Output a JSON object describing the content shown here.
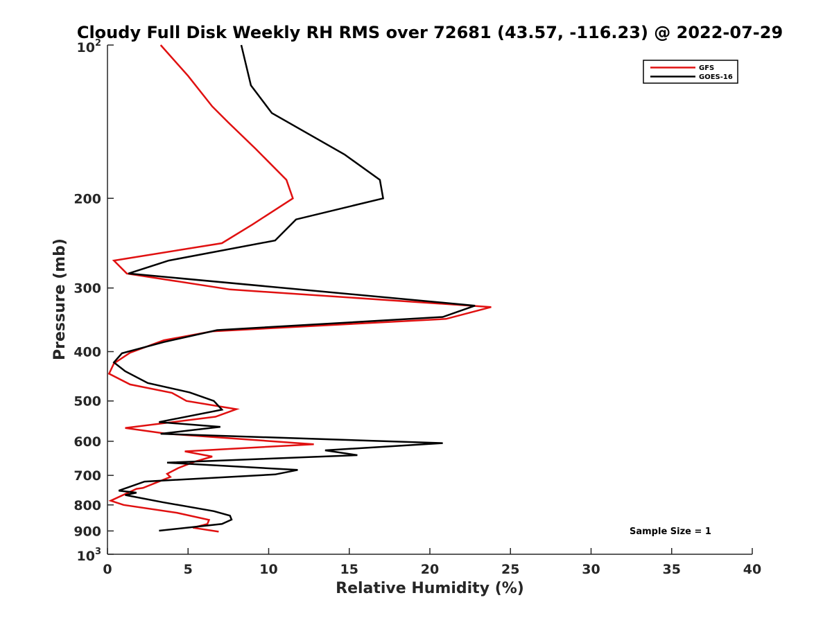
{
  "chart_data": {
    "type": "line",
    "title": "Cloudy Full Disk Weekly RH RMS over 72681 (43.57, -116.23) @ 2022-07-29",
    "xlabel": "Relative Humidity (%)",
    "ylabel": "Pressure (mb)",
    "xlim": [
      0,
      40
    ],
    "ylim": [
      100,
      1000
    ],
    "yscale": "log",
    "y_reversed": true,
    "grid": false,
    "legend_position": "top-right",
    "x_ticks": [
      0,
      5,
      10,
      15,
      20,
      25,
      30,
      35,
      40
    ],
    "x_tick_labels": [
      "0",
      "5",
      "10",
      "15",
      "20",
      "25",
      "30",
      "35",
      "40"
    ],
    "y_ticks": [
      200,
      300,
      400,
      500,
      600,
      700,
      800,
      900
    ],
    "y_tick_labels": [
      "200",
      "300",
      "400",
      "500",
      "600",
      "700",
      "800",
      "900"
    ],
    "y_end_labels": {
      "top_base": "10",
      "top_exp": "2",
      "bottom_base": "10",
      "bottom_exp": "3"
    },
    "annotation": "Sample Size = 1",
    "series": [
      {
        "name": "GFS",
        "color": "#e01010",
        "points": [
          [
            3.3,
            100
          ],
          [
            5,
            115
          ],
          [
            6.5,
            132
          ],
          [
            7.5,
            142
          ],
          [
            9.2,
            160
          ],
          [
            11.1,
            184
          ],
          [
            11.5,
            200
          ],
          [
            9,
            225
          ],
          [
            7.1,
            245
          ],
          [
            0.4,
            265
          ],
          [
            1.2,
            281
          ],
          [
            7.6,
            302
          ],
          [
            23.8,
            327
          ],
          [
            21,
            345
          ],
          [
            6.5,
            365
          ],
          [
            3.5,
            380
          ],
          [
            1.4,
            402
          ],
          [
            0.4,
            422
          ],
          [
            0.1,
            442
          ],
          [
            1.4,
            464
          ],
          [
            4,
            482
          ],
          [
            4.9,
            500
          ],
          [
            8,
            519
          ],
          [
            6.7,
            537
          ],
          [
            1.1,
            565
          ],
          [
            3.7,
            580
          ],
          [
            12.8,
            608
          ],
          [
            4.8,
            628
          ],
          [
            6.5,
            643
          ],
          [
            5.4,
            658
          ],
          [
            4.4,
            677
          ],
          [
            3.7,
            695
          ],
          [
            3.9,
            705
          ],
          [
            2.2,
            741
          ],
          [
            1.8,
            744
          ],
          [
            0.2,
            785
          ],
          [
            1,
            800
          ],
          [
            4.3,
            829
          ],
          [
            6.3,
            856
          ],
          [
            6.2,
            872
          ],
          [
            5.3,
            887
          ],
          [
            6.9,
            903
          ]
        ]
      },
      {
        "name": "GOES-16",
        "color": "#000000",
        "points": [
          [
            8.3,
            100
          ],
          [
            8.9,
            120
          ],
          [
            10.2,
            136
          ],
          [
            14.7,
            164
          ],
          [
            16.9,
            184
          ],
          [
            17.1,
            200
          ],
          [
            11.7,
            220
          ],
          [
            10.4,
            242
          ],
          [
            3.8,
            265
          ],
          [
            1.3,
            281
          ],
          [
            22.8,
            325
          ],
          [
            20.8,
            342
          ],
          [
            6.8,
            363
          ],
          [
            3.5,
            383
          ],
          [
            0.9,
            403
          ],
          [
            0.4,
            420
          ],
          [
            1.1,
            437
          ],
          [
            2.5,
            461
          ],
          [
            5.1,
            481
          ],
          [
            6.6,
            500
          ],
          [
            7.1,
            520
          ],
          [
            3.2,
            550
          ],
          [
            7,
            562
          ],
          [
            3.3,
            580
          ],
          [
            20.8,
            605
          ],
          [
            13.5,
            625
          ],
          [
            15.5,
            639
          ],
          [
            3.7,
            661
          ],
          [
            11.8,
            683
          ],
          [
            10.4,
            697
          ],
          [
            2.3,
            720
          ],
          [
            0.7,
            750
          ],
          [
            1.8,
            757
          ],
          [
            1.1,
            765
          ],
          [
            3.4,
            790
          ],
          [
            6.6,
            823
          ],
          [
            7.6,
            840
          ],
          [
            7.7,
            855
          ],
          [
            7.1,
            872
          ],
          [
            3.2,
            899
          ]
        ]
      }
    ]
  }
}
